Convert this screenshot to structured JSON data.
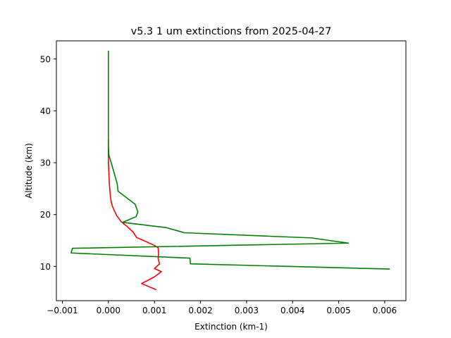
{
  "chart_data": {
    "type": "line",
    "title": "v5.3 1 um extinctions from 2025-04-27",
    "xlabel": "Extinction (km-1)",
    "ylabel": "Altitude (km)",
    "xlim": [
      -0.00113,
      0.00646
    ],
    "ylim": [
      3.4,
      53.5
    ],
    "xticks": [
      -0.001,
      0.0,
      0.001,
      0.002,
      0.003,
      0.004,
      0.005,
      0.006
    ],
    "xtick_labels": [
      "−0.001",
      "0.000",
      "0.001",
      "0.002",
      "0.003",
      "0.004",
      "0.005",
      "0.006"
    ],
    "yticks": [
      10,
      20,
      30,
      40,
      50
    ],
    "ytick_labels": [
      "10",
      "20",
      "30",
      "40",
      "50"
    ],
    "grid": false,
    "series": [
      {
        "color": "#ff0000",
        "points": [
          [
            0.00104,
            5.5
          ],
          [
            0.00072,
            6.7
          ],
          [
            0.001,
            8.0
          ],
          [
            0.00115,
            9.0
          ],
          [
            0.001,
            9.6
          ],
          [
            0.00111,
            10.5
          ],
          [
            0.00108,
            11.5
          ],
          [
            0.00109,
            12.5
          ],
          [
            0.00108,
            13.6
          ],
          [
            0.00099,
            14.1
          ],
          [
            0.00061,
            15.6
          ],
          [
            0.00054,
            16.6
          ],
          [
            0.00042,
            17.6
          ],
          [
            0.00028,
            18.6
          ],
          [
            0.00018,
            19.8
          ],
          [
            9e-05,
            21.5
          ],
          [
            6e-05,
            22.5
          ],
          [
            4e-05,
            23.8
          ],
          [
            2e-05,
            26.0
          ],
          [
            1e-05,
            28.0
          ],
          [
            0.0,
            30.0
          ],
          [
            0.0,
            32.0
          ],
          [
            0.0,
            34.5
          ]
        ]
      },
      {
        "color": "#008000",
        "points": [
          [
            0.00611,
            9.5
          ],
          [
            0.00178,
            10.5
          ],
          [
            0.00177,
            11.6
          ],
          [
            -0.00081,
            12.6
          ],
          [
            -0.00078,
            13.5
          ],
          [
            0.00521,
            14.5
          ],
          [
            0.00441,
            15.5
          ],
          [
            0.00165,
            16.5
          ],
          [
            0.00125,
            17.5
          ],
          [
            0.00031,
            18.5
          ],
          [
            0.0006,
            19.6
          ],
          [
            0.00064,
            20.5
          ],
          [
            0.00058,
            22.0
          ],
          [
            0.00021,
            24.5
          ],
          [
            0.00019,
            26.0
          ],
          [
            0.00015,
            27.2
          ],
          [
            0.00011,
            28.5
          ],
          [
            6e-05,
            30.0
          ],
          [
            1e-05,
            31.5
          ],
          [
            0.0,
            33.0
          ],
          [
            0.0,
            35.0
          ],
          [
            0.0,
            40.0
          ],
          [
            0.0,
            45.0
          ],
          [
            0.0,
            51.6
          ]
        ]
      }
    ]
  }
}
